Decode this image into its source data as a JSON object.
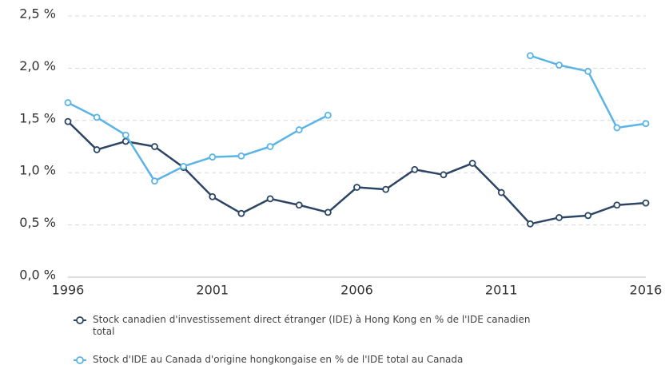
{
  "chart_data": {
    "type": "line",
    "x": [
      1996,
      1997,
      1998,
      1999,
      2000,
      2001,
      2002,
      2003,
      2004,
      2005,
      2006,
      2007,
      2008,
      2009,
      2010,
      2011,
      2012,
      2013,
      2014,
      2015,
      2016
    ],
    "series": [
      {
        "name": "Stock canadien d'investissement direct étranger (IDE) à Hong Kong en % de l'IDE canadien total",
        "color": "#2d4565",
        "values": [
          1.49,
          1.22,
          1.3,
          1.25,
          1.05,
          0.77,
          0.61,
          0.75,
          0.69,
          0.62,
          0.86,
          0.84,
          1.03,
          0.98,
          1.09,
          0.81,
          0.51,
          0.57,
          0.59,
          0.69,
          0.71
        ]
      },
      {
        "name": "Stock d'IDE au Canada d'origine hongkongaise en % de l'IDE total au Canada",
        "color": "#5ab4e6",
        "values": [
          1.67,
          1.53,
          1.36,
          0.92,
          1.06,
          1.15,
          1.16,
          1.25,
          1.41,
          1.55,
          null,
          null,
          null,
          null,
          null,
          null,
          2.12,
          2.03,
          1.97,
          1.43,
          1.47
        ]
      }
    ],
    "xlim": [
      1996,
      2016
    ],
    "xticks": [
      1996,
      2001,
      2006,
      2011,
      2016
    ],
    "ylim": [
      0,
      2.5
    ],
    "yticks": [
      {
        "value": 0,
        "label": "0,0 %"
      },
      {
        "value": 0.5,
        "label": "0,5 %"
      },
      {
        "value": 1,
        "label": "1,0 %"
      },
      {
        "value": 1.5,
        "label": "1,5 %"
      },
      {
        "value": 2,
        "label": "2,0 %"
      },
      {
        "value": 2.5,
        "label": "2,5 %"
      }
    ],
    "grid": true
  }
}
